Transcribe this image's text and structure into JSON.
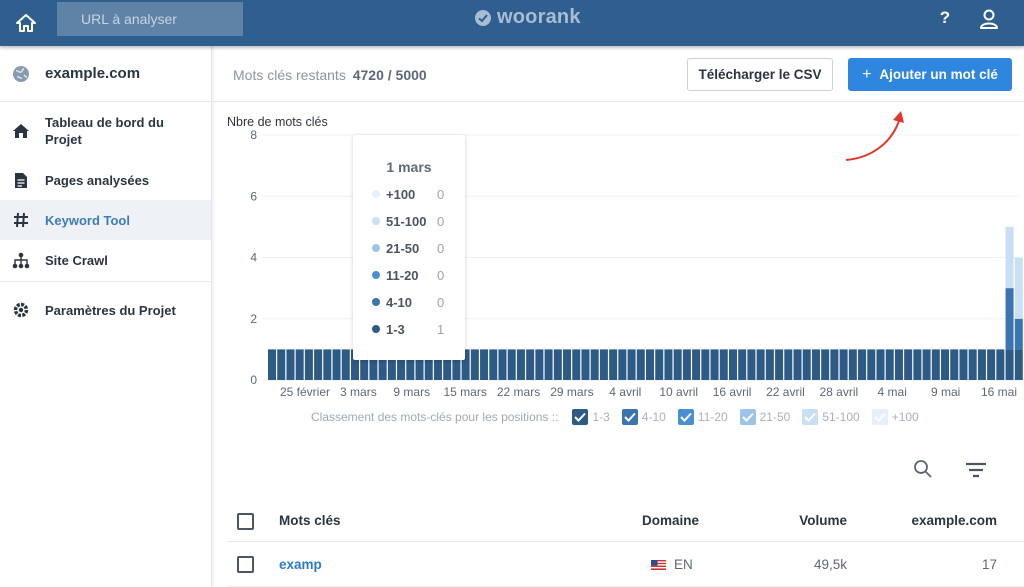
{
  "topbar": {
    "url_placeholder": "URL à analyser",
    "brand": "woorank",
    "help_label": "?",
    "colors": {
      "bar": "#2f5f8f",
      "input": "#5f83a7"
    }
  },
  "sidebar": {
    "site": "example.com",
    "items": [
      {
        "label": "Tableau de bord du Projet",
        "icon": "home-icon",
        "active": false
      },
      {
        "label": "Pages analysées",
        "icon": "document-icon",
        "active": false
      },
      {
        "label": "Keyword Tool",
        "icon": "hash-icon",
        "active": true
      },
      {
        "label": "Site Crawl",
        "icon": "sitemap-icon",
        "active": false
      },
      {
        "label": "Paramètres du Projet",
        "icon": "gear-icon",
        "active": false
      }
    ]
  },
  "header": {
    "remaining_label": "Mots clés restants",
    "remaining_value": "4720 / 5000",
    "csv_button": "Télécharger le CSV",
    "add_button": "Ajouter un mot clé"
  },
  "chart_data": {
    "type": "bar",
    "stacked": true,
    "ylabel": "Nbre de mots clés",
    "ylim": [
      0,
      8
    ],
    "yticks": [
      "0",
      "2",
      "4",
      "6",
      "8"
    ],
    "x_tick_labels": [
      "25 février",
      "3 mars",
      "9 mars",
      "15 mars",
      "22 mars",
      "29 mars",
      "4 avril",
      "10 avril",
      "16 avril",
      "22 avril",
      "28 avril",
      "4 mai",
      "9 mai",
      "16 mai"
    ],
    "daily_bar_count": 82,
    "series": [
      {
        "name": "1-3",
        "color": "#2e5a86",
        "baseline": 1,
        "last_two": [
          1,
          1
        ]
      },
      {
        "name": "4-10",
        "color": "#3b75b0",
        "baseline": 0,
        "last_two": [
          2,
          1
        ]
      },
      {
        "name": "11-20",
        "color": "#4a8fd2",
        "baseline": 0,
        "last_two": [
          0,
          0
        ]
      },
      {
        "name": "21-50",
        "color": "#9cc4ea",
        "baseline": 0,
        "last_two": [
          0,
          0
        ]
      },
      {
        "name": "51-100",
        "color": "#c9dff4",
        "baseline": 0,
        "last_two": [
          2,
          2
        ]
      },
      {
        "name": "+100",
        "color": "#e6f0fa",
        "baseline": 0,
        "last_two": [
          0,
          0
        ]
      }
    ],
    "legend_title": "Classement des mots-clés pour les positions ::",
    "grid": true,
    "tooltip": {
      "date": "1 mars",
      "rows": [
        {
          "label": "+100",
          "value": "0",
          "color": "#e6f0fa"
        },
        {
          "label": "51-100",
          "value": "0",
          "color": "#c9dff4"
        },
        {
          "label": "21-50",
          "value": "0",
          "color": "#9cc4ea"
        },
        {
          "label": "11-20",
          "value": "0",
          "color": "#4a8fd2"
        },
        {
          "label": "4-10",
          "value": "0",
          "color": "#3b75b0"
        },
        {
          "label": "1-3",
          "value": "1",
          "color": "#2e5a86"
        }
      ]
    }
  },
  "table": {
    "columns": [
      "Mots clés",
      "Domaine",
      "Volume",
      "example.com"
    ],
    "rows": [
      {
        "keyword": "examp",
        "domain": "EN",
        "volume": "49,5k",
        "position": "17"
      }
    ]
  }
}
